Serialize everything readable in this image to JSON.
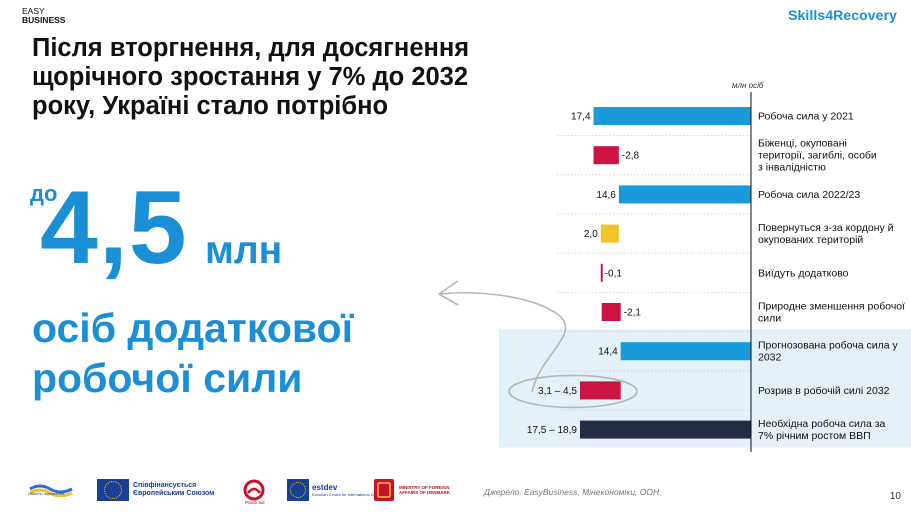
{
  "header": {
    "easy_line1": "EASY",
    "easy_line2": "BUSINESS",
    "skills_logo": "Skills4Recovery"
  },
  "title": "Після вторгнення, для досягнення щорічного зростання у 7% до 2032 року, Україні стало потрібно",
  "highlight": {
    "prefix": "до",
    "number": "4,5",
    "unit": "млн",
    "description": "осіб додаткової робочої сили"
  },
  "chart_data": {
    "type": "bar",
    "orientation": "horizontal",
    "unit_label": "млн осіб",
    "xlim": [
      -19,
      0
    ],
    "colors": {
      "blue": "#1a9ad9",
      "red": "#cc1443",
      "yellow": "#f2c42c",
      "navy": "#232b45",
      "highlight_bg": "#e3f1fa"
    },
    "bars": [
      {
        "category": "Робоча сила у 2021",
        "value_label": "17,4",
        "start": -17.4,
        "end": 0,
        "color": "blue"
      },
      {
        "category": "Біженці, окуповані території, загиблі, особи з інвалідністю",
        "value_label": "-2,8",
        "start": -17.4,
        "end": -14.6,
        "color": "red"
      },
      {
        "category": "Робоча сила 2022/23",
        "value_label": "14,6",
        "start": -14.6,
        "end": 0,
        "color": "blue"
      },
      {
        "category": "Повернуться з-за кордону й окупованих територій",
        "value_label": "2,0",
        "start": -16.6,
        "end": -14.6,
        "color": "yellow"
      },
      {
        "category": "Виїдуть додатково",
        "value_label": "-0,1",
        "start": -16.6,
        "end": -16.5,
        "color": "red"
      },
      {
        "category": "Природне зменшення робочої сили",
        "value_label": "-2,1",
        "start": -16.5,
        "end": -14.4,
        "color": "red"
      },
      {
        "category": "Прогнозована робоча сила у 2032",
        "value_label": "14,4",
        "start": -14.4,
        "end": 0,
        "color": "blue"
      },
      {
        "category": "Розрив в робочій силі 2032",
        "value_label": "3,1 – 4,5",
        "start": -18.9,
        "end": -14.4,
        "color": "red"
      },
      {
        "category": "Необхідна робоча сила за 7% річним ростом ВВП",
        "value_label": "17,5 – 18,9",
        "start": -18.9,
        "end": 0,
        "color": "navy"
      }
    ]
  },
  "footer": {
    "ua_logo_text": "стійкість і відновлення",
    "eu_text": "Співфінансується Європейським Союзом",
    "polish_aid": "Polish aid",
    "estdev": "estdev",
    "estdev_sub": "Estonian Centre for International Development",
    "denmark": "MINISTRY OF FOREIGN AFFAIRS OF DENMARK",
    "source": "Джерело: EasyBusiness, Мінекономіки, ООН",
    "page_number": "10"
  }
}
